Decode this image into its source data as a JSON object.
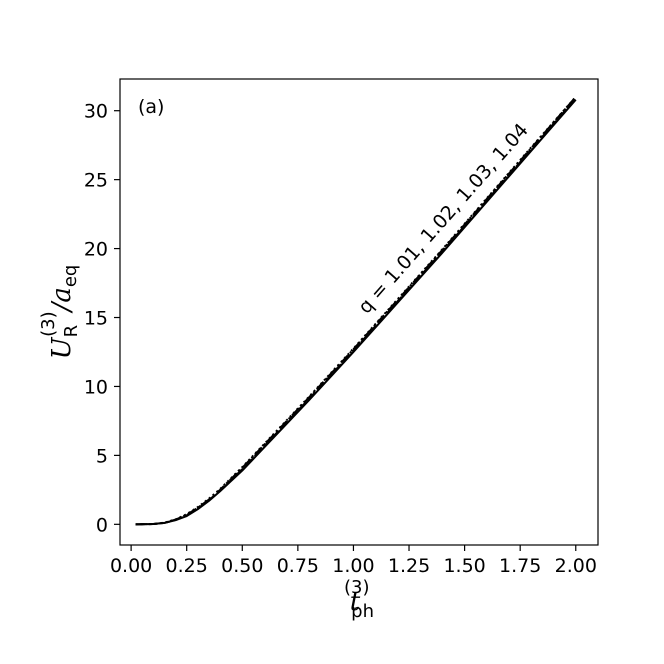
{
  "chart_data": {
    "type": "line",
    "panel_label": "(a)",
    "xlabel": {
      "main": "t",
      "sub": "ph",
      "sup": "(3)"
    },
    "ylabel": {
      "main": "U",
      "sub": "R",
      "sup": "(3)",
      "suffix": "/a",
      "suffix_sub": "eq"
    },
    "xlim": [
      -0.05,
      2.1
    ],
    "ylim": [
      -1.5,
      32.3
    ],
    "xticks": [
      0.0,
      0.25,
      0.5,
      0.75,
      1.0,
      1.25,
      1.5,
      1.75,
      2.0
    ],
    "xtick_labels": [
      "0.00",
      "0.25",
      "0.50",
      "0.75",
      "1.00",
      "1.25",
      "1.50",
      "1.75",
      "2.00"
    ],
    "yticks": [
      0,
      5,
      10,
      15,
      20,
      25,
      30
    ],
    "ytick_labels": [
      "0",
      "5",
      "10",
      "15",
      "20",
      "25",
      "30"
    ],
    "annotation": "q = 1.01, 1.02, 1.03, 1.04",
    "grid": false,
    "series": [
      {
        "style": "solid",
        "color": "#000000",
        "x": [
          0.02,
          0.1,
          0.15,
          0.2,
          0.25,
          0.3,
          0.35,
          0.4,
          0.5,
          0.6,
          0.7,
          0.8,
          1.0,
          1.2,
          1.4,
          1.6,
          1.8,
          2.0
        ],
        "y": [
          0.0,
          0.02,
          0.1,
          0.3,
          0.6,
          1.1,
          1.7,
          2.4,
          3.9,
          5.6,
          7.3,
          9.0,
          12.5,
          16.1,
          19.7,
          23.4,
          27.1,
          30.8
        ]
      },
      {
        "style": "dashed",
        "color": "#000000",
        "x": [
          0.02,
          0.1,
          0.15,
          0.2,
          0.25,
          0.3,
          0.35,
          0.4,
          0.5,
          0.6,
          0.7,
          0.8,
          1.0,
          1.2,
          1.4,
          1.6,
          1.8,
          2.0
        ],
        "y": [
          0.0,
          0.02,
          0.1,
          0.32,
          0.65,
          1.15,
          1.75,
          2.45,
          4.0,
          5.7,
          7.4,
          9.1,
          12.6,
          16.2,
          19.8,
          23.5,
          27.2,
          30.9
        ]
      },
      {
        "style": "dashdot",
        "color": "#000000",
        "x": [
          0.02,
          0.1,
          0.15,
          0.2,
          0.25,
          0.3,
          0.35,
          0.4,
          0.5,
          0.6,
          0.7,
          0.8,
          1.0,
          1.2,
          1.4,
          1.6,
          1.8,
          2.0
        ],
        "y": [
          0.0,
          0.02,
          0.11,
          0.34,
          0.7,
          1.2,
          1.8,
          2.5,
          4.1,
          5.8,
          7.5,
          9.2,
          12.7,
          16.3,
          19.9,
          23.6,
          27.3,
          31.0
        ]
      },
      {
        "style": "dotted",
        "color": "#000000",
        "x": [
          0.02,
          0.1,
          0.15,
          0.2,
          0.25,
          0.3,
          0.35,
          0.4,
          0.5,
          0.6,
          0.7,
          0.8,
          1.0,
          1.2,
          1.4,
          1.6,
          1.8,
          2.0
        ],
        "y": [
          0.0,
          0.02,
          0.12,
          0.36,
          0.74,
          1.25,
          1.86,
          2.56,
          4.15,
          5.85,
          7.55,
          9.25,
          12.75,
          16.35,
          19.95,
          23.65,
          27.35,
          31.0
        ]
      }
    ]
  }
}
